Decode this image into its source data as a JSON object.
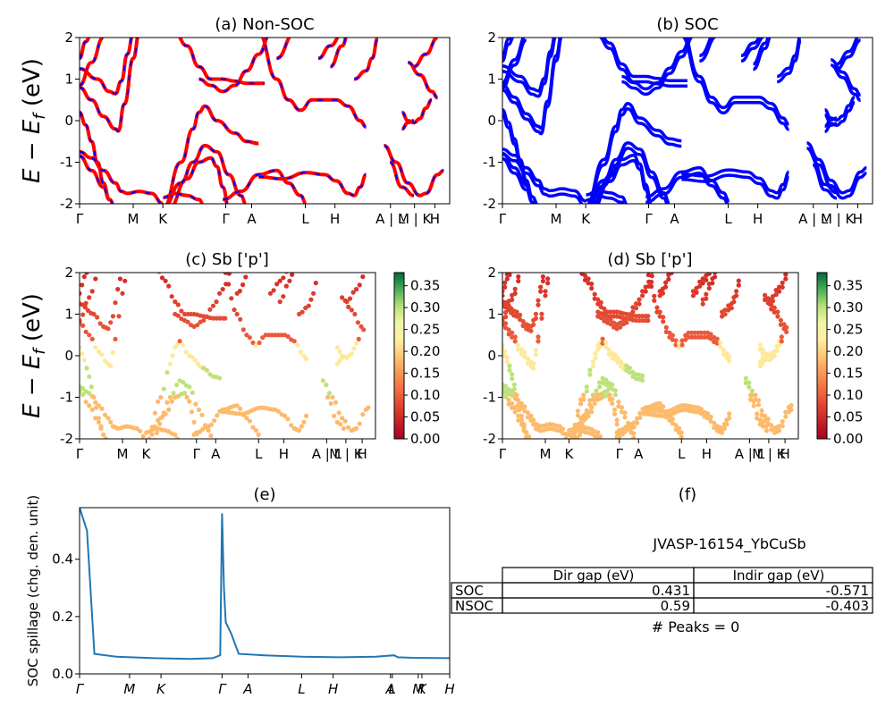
{
  "chart_data": [
    {
      "panel": "a",
      "type": "line",
      "title": "(a) Non-SOC",
      "ylabel": "E − E_f (eV)",
      "ylim": [
        -2,
        2
      ],
      "yticks": [
        -2,
        -1,
        0,
        1,
        2
      ],
      "xticks": [
        "Γ",
        "M",
        "K",
        "Γ",
        "A",
        "L",
        "H",
        "A | L",
        "M | K",
        "H"
      ],
      "series": [
        {
          "color": "#ff0000",
          "style": "solid",
          "bands": [
            [
              [
                0,
                1.5
              ],
              [
                1,
                1.9
              ],
              [
                2,
                2.1
              ]
            ],
            [
              [
                0,
                0.85
              ],
              [
                2,
                1.4
              ],
              [
                4,
                2.0
              ]
            ],
            [
              [
                0,
                1.25
              ],
              [
                3,
                1.0
              ],
              [
                5,
                0.7
              ],
              [
                6,
                0.65
              ],
              [
                7,
                0.95
              ],
              [
                8,
                1.6
              ],
              [
                9,
                2.1
              ]
            ],
            [
              [
                0,
                0.8
              ],
              [
                2,
                0.5
              ],
              [
                4,
                0.1
              ],
              [
                6,
                -0.2
              ],
              [
                6.5,
                -0.25
              ],
              [
                7.5,
                0.4
              ],
              [
                9,
                1.5
              ],
              [
                10,
                2.1
              ]
            ],
            [
              [
                0,
                0.2
              ],
              [
                1,
                -0.1
              ],
              [
                2,
                -0.5
              ],
              [
                3,
                -1.0
              ],
              [
                4,
                -1.5
              ],
              [
                5,
                -1.9
              ],
              [
                6,
                -2.1
              ]
            ],
            [
              [
                0,
                -0.75
              ],
              [
                2,
                -0.9
              ],
              [
                4,
                -1.2
              ],
              [
                6,
                -1.5
              ],
              [
                7,
                -1.7
              ],
              [
                8,
                -1.75
              ],
              [
                10,
                -1.7
              ],
              [
                12,
                -1.75
              ],
              [
                14,
                -2.0
              ]
            ],
            [
              [
                0,
                -0.85
              ],
              [
                2,
                -1.2
              ],
              [
                4,
                -1.6
              ],
              [
                5,
                -1.9
              ],
              [
                6,
                -2.1
              ]
            ],
            [
              [
                16,
                2.1
              ],
              [
                18,
                1.8
              ],
              [
                20,
                1.3
              ],
              [
                22,
                1.0
              ],
              [
                24,
                1.0
              ],
              [
                26,
                0.95
              ],
              [
                28,
                0.9
              ],
              [
                30,
                0.9
              ],
              [
                31,
                0.9
              ]
            ],
            [
              [
                14,
                -2.1
              ],
              [
                17,
                -1.0
              ],
              [
                19,
                -0.2
              ],
              [
                20,
                0.2
              ],
              [
                21,
                0.35
              ],
              [
                23,
                0.0
              ],
              [
                26,
                -0.3
              ],
              [
                28,
                -0.5
              ],
              [
                30,
                -0.55
              ]
            ],
            [
              [
                14,
                -2.1
              ],
              [
                17,
                -1.5
              ],
              [
                19,
                -1.0
              ],
              [
                21,
                -0.6
              ],
              [
                23,
                -0.75
              ],
              [
                25,
                -1.3
              ],
              [
                27,
                -1.8
              ],
              [
                28,
                -2.05
              ]
            ],
            [
              [
                15,
                -2.1
              ],
              [
                18,
                -1.4
              ],
              [
                20,
                -1.0
              ],
              [
                22,
                -0.9
              ],
              [
                23,
                -1.1
              ],
              [
                24,
                -1.6
              ],
              [
                25,
                -2.1
              ]
            ],
            [
              [
                14,
                -1.85
              ],
              [
                16,
                -1.75
              ],
              [
                18,
                -1.8
              ],
              [
                20,
                -1.9
              ],
              [
                21,
                -2.1
              ]
            ],
            [
              [
                20,
                1.0
              ],
              [
                22,
                0.85
              ],
              [
                24,
                0.7
              ],
              [
                26,
                0.85
              ],
              [
                28,
                1.2
              ],
              [
                30,
                1.6
              ],
              [
                32,
                2.1
              ]
            ],
            [
              [
                30,
                2.1
              ],
              [
                33,
                1.0
              ],
              [
                35,
                0.5
              ],
              [
                37,
                0.25
              ],
              [
                39,
                0.5
              ],
              [
                41,
                0.5
              ],
              [
                43,
                0.5
              ],
              [
                45,
                0.35
              ],
              [
                47,
                0.0
              ],
              [
                48,
                -0.15
              ]
            ],
            [
              [
                24,
                -1.9
              ],
              [
                27,
                -1.7
              ],
              [
                30,
                -1.3
              ],
              [
                33,
                -1.2
              ],
              [
                35,
                -1.5
              ],
              [
                37,
                -1.8
              ],
              [
                38,
                -2.0
              ]
            ],
            [
              [
                30,
                -1.35
              ],
              [
                34,
                -1.4
              ],
              [
                38,
                -1.25
              ],
              [
                41,
                -1.3
              ],
              [
                43,
                -1.45
              ],
              [
                45,
                -1.75
              ],
              [
                46,
                -1.8
              ],
              [
                47,
                -1.6
              ],
              [
                48,
                -1.3
              ]
            ],
            [
              [
                33,
                1.5
              ],
              [
                36,
                2.1
              ]
            ],
            [
              [
                40,
                1.5
              ],
              [
                42,
                1.8
              ],
              [
                44,
                2.1
              ]
            ],
            [
              [
                42,
                1.3
              ],
              [
                44,
                1.8
              ],
              [
                45,
                2.1
              ]
            ],
            [
              [
                46,
                1.0
              ],
              [
                48,
                1.2
              ],
              [
                49,
                1.5
              ],
              [
                50,
                2.0
              ]
            ],
            [
              [
                55,
                1.4
              ],
              [
                57,
                1.1
              ],
              [
                59,
                0.7
              ],
              [
                60,
                0.55
              ]
            ],
            [
              [
                54,
                0.2
              ],
              [
                55,
                0.0
              ],
              [
                56,
                -0.05
              ],
              [
                57,
                0.05
              ],
              [
                58,
                0.3
              ],
              [
                59,
                0.5
              ]
            ],
            [
              [
                54,
                -0.2
              ],
              [
                55,
                -0.05
              ],
              [
                56,
                0.0
              ]
            ],
            [
              [
                51,
                -0.6
              ],
              [
                53,
                -1.0
              ],
              [
                55,
                -1.5
              ],
              [
                57,
                -1.8
              ],
              [
                58,
                -1.75
              ],
              [
                60,
                -1.3
              ],
              [
                61,
                -1.2
              ]
            ],
            [
              [
                52,
                -1.0
              ],
              [
                54,
                -1.6
              ],
              [
                56,
                -1.8
              ]
            ],
            [
              [
                56,
                1.3
              ],
              [
                58,
                1.6
              ],
              [
                60,
                2.0
              ]
            ]
          ]
        },
        {
          "color": "#0000ff",
          "style": "dashed",
          "bands": "same"
        }
      ]
    },
    {
      "panel": "b",
      "type": "line",
      "title": "(b) SOC",
      "ylim": [
        -2,
        2
      ],
      "yticks": [
        -2,
        -1,
        0,
        1,
        2
      ],
      "xticks": [
        "Γ",
        "M",
        "K",
        "Γ",
        "A",
        "L",
        "H",
        "A | L",
        "M | K",
        "H"
      ],
      "series": [
        {
          "color": "#0000ff",
          "style": "solid",
          "bands": "split pairs of (a)"
        }
      ]
    },
    {
      "panel": "c",
      "type": "scatter",
      "title": "(c)  Sb ['p']",
      "ylabel": "E − E_f (eV)",
      "ylim": [
        -2,
        2
      ],
      "yticks": [
        -2,
        -1,
        0,
        1,
        2
      ],
      "xticks": [
        "Γ",
        "M",
        "K",
        "Γ",
        "A",
        "L",
        "H",
        "A | L",
        "M | K",
        "H"
      ],
      "colorbar": {
        "ticks": [
          "0.00",
          "0.05",
          "0.10",
          "0.15",
          "0.20",
          "0.25",
          "0.30",
          "0.35"
        ],
        "range": [
          0,
          0.38
        ],
        "cmap": "RdYlGn"
      }
    },
    {
      "panel": "d",
      "type": "scatter",
      "title": "(d) Sb ['p']",
      "ylim": [
        -2,
        2
      ],
      "yticks": [
        -2,
        -1,
        0,
        1,
        2
      ],
      "xticks": [
        "Γ",
        "M",
        "K",
        "Γ",
        "A",
        "L",
        "H",
        "A | L",
        "M | K",
        "H"
      ],
      "colorbar": {
        "ticks": [
          "0.00",
          "0.05",
          "0.10",
          "0.15",
          "0.20",
          "0.25",
          "0.30",
          "0.35"
        ],
        "range": [
          0,
          0.38
        ],
        "cmap": "RdYlGn"
      }
    },
    {
      "panel": "e",
      "type": "line",
      "title": "(e)",
      "ylabel": "SOC spillage (chg. den. unit)",
      "ylim": [
        0,
        0.58
      ],
      "yticks": [
        "0.0",
        "0.2",
        "0.4"
      ],
      "xticks": [
        "Γ",
        "M",
        "K",
        "Γ",
        "A",
        "L",
        "H",
        "A",
        "L",
        "M",
        "K",
        "H"
      ],
      "color": "#1f77b4",
      "points": [
        [
          0,
          0.58
        ],
        [
          0.02,
          0.5
        ],
        [
          0.04,
          0.07
        ],
        [
          0.1,
          0.06
        ],
        [
          0.2,
          0.055
        ],
        [
          0.3,
          0.052
        ],
        [
          0.36,
          0.055
        ],
        [
          0.38,
          0.065
        ],
        [
          0.385,
          0.56
        ],
        [
          0.39,
          0.3
        ],
        [
          0.395,
          0.18
        ],
        [
          0.41,
          0.14
        ],
        [
          0.43,
          0.07
        ],
        [
          0.5,
          0.065
        ],
        [
          0.6,
          0.06
        ],
        [
          0.7,
          0.058
        ],
        [
          0.8,
          0.06
        ],
        [
          0.85,
          0.065
        ],
        [
          0.86,
          0.058
        ],
        [
          0.9,
          0.056
        ],
        [
          1.0,
          0.055
        ]
      ]
    }
  ],
  "table": {
    "title": "(f)",
    "name": "JVASP-16154_YbCuSb",
    "header": [
      "Dir gap (eV)",
      "Indir gap (eV)"
    ],
    "rows": [
      {
        "label": "SOC",
        "dir": "0.431",
        "indir": "-0.571"
      },
      {
        "label": "NSOC",
        "dir": "0.59",
        "indir": "-0.403"
      }
    ],
    "peaks": "# Peaks = 0"
  }
}
